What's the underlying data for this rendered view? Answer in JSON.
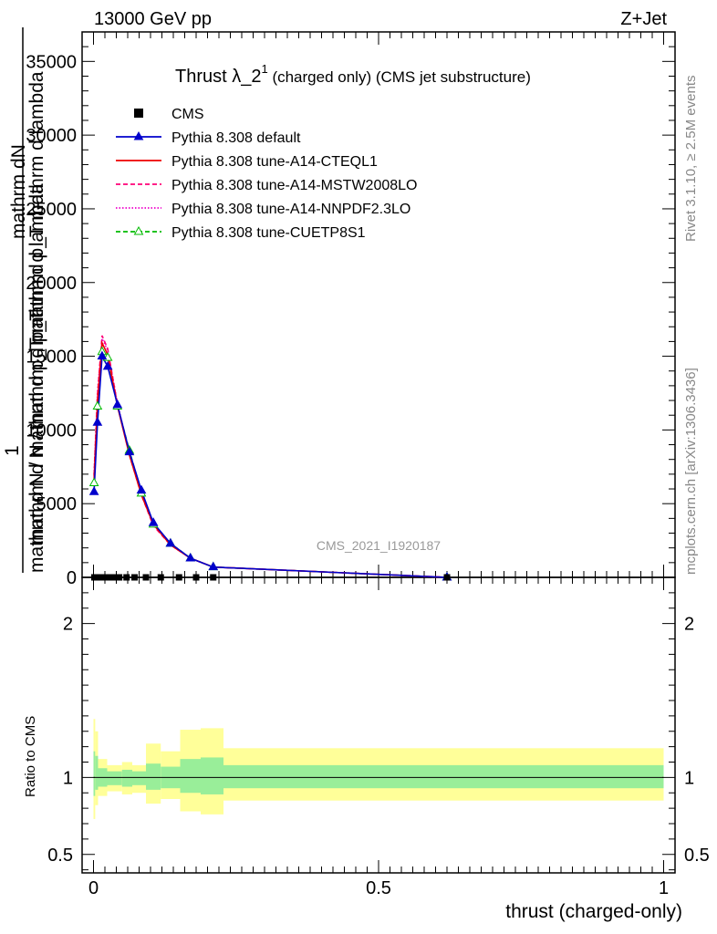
{
  "header": {
    "energy": "13000 GeV pp",
    "process": "Z+Jet"
  },
  "side_labels": {
    "rivet": "Rivet 3.1.10, ≥ 2.5M events",
    "mcplots": "mcplots.cern.ch [arXiv:1306.3436]"
  },
  "watermark": "CMS_2021_I1920187",
  "main_ylabel_lines": [
    "mathrm dN",
    "1",
    "mathrm d N / mathrm d p_T",
    "mathrm d p_T mathrm d lambda",
    "mathrm d N / mathrm d p_T mathrm d lambda"
  ],
  "ratio_ylabel": "Ratio to CMS",
  "xlabel": "thrust (charged-only)",
  "colors": {
    "cms": "#000000",
    "default": "#0000cc",
    "cteql1": "#ee0000",
    "mstw": "#ff0077",
    "nnpdf": "#ee00cc",
    "cuetp8s1": "#00bb00",
    "band_inner": "#99ee99",
    "band_outer": "#ffff99"
  },
  "chart_data": [
    {
      "type": "line",
      "title": "Thrust λ_2¹ (charged only) (CMS jet substructure)",
      "title_main": "Thrust λ_2",
      "title_sup": "1",
      "title_rest": " (charged only) (CMS jet substructure)",
      "xlim": [
        -0.02,
        1.02
      ],
      "ylim": [
        0,
        37000
      ],
      "yticks": [
        0,
        5000,
        10000,
        15000,
        20000,
        25000,
        30000,
        35000
      ],
      "ytick_labels": [
        "0",
        "5000",
        "10000",
        "15000",
        "20000",
        "25000",
        "30000",
        "35000"
      ],
      "xticks": [
        0,
        0.5,
        1
      ],
      "xtick_labels": [
        "0",
        "0.5",
        "1"
      ],
      "legend_position": "top-left",
      "series": [
        {
          "name": "CMS",
          "style": "data",
          "x": [
            0.0015,
            0.0055,
            0.0105,
            0.016,
            0.022,
            0.028,
            0.036,
            0.045,
            0.058,
            0.072,
            0.092,
            0.118,
            0.15,
            0.18,
            0.21,
            0.62
          ],
          "y": [
            0,
            0,
            0,
            0,
            0,
            0,
            0,
            0,
            0,
            0,
            0,
            0,
            0,
            0,
            0,
            0
          ]
        },
        {
          "name": "Pythia 8.308 default",
          "style": "default",
          "x": [
            0.001,
            0.007,
            0.015,
            0.025,
            0.042,
            0.063,
            0.084,
            0.105,
            0.135,
            0.17,
            0.21,
            0.62
          ],
          "y": [
            5800,
            10500,
            15000,
            14300,
            11700,
            8500,
            5900,
            3700,
            2300,
            1300,
            700,
            0
          ]
        },
        {
          "name": "Pythia 8.308 tune-A14-CTEQL1",
          "style": "cteql1",
          "x": [
            0.001,
            0.007,
            0.015,
            0.025,
            0.042,
            0.063,
            0.084,
            0.105,
            0.135,
            0.17,
            0.21,
            0.62
          ],
          "y": [
            6600,
            11900,
            15900,
            15100,
            11600,
            8300,
            5600,
            3600,
            2200,
            1300,
            700,
            0
          ]
        },
        {
          "name": "Pythia 8.308 tune-A14-MSTW2008LO",
          "style": "mstw",
          "x": [
            0.001,
            0.007,
            0.015,
            0.025,
            0.042,
            0.063,
            0.084,
            0.105,
            0.135,
            0.17,
            0.21,
            0.62
          ],
          "y": [
            6900,
            12400,
            16400,
            15500,
            11700,
            8300,
            5600,
            3500,
            2200,
            1300,
            700,
            0
          ]
        },
        {
          "name": "Pythia 8.308 tune-A14-NNPDF2.3LO",
          "style": "nnpdf",
          "x": [
            0.001,
            0.007,
            0.015,
            0.025,
            0.042,
            0.063,
            0.084,
            0.105,
            0.135,
            0.17,
            0.21,
            0.62
          ],
          "y": [
            7000,
            12600,
            16200,
            15400,
            11800,
            8400,
            5700,
            3600,
            2200,
            1300,
            700,
            0
          ]
        },
        {
          "name": "Pythia 8.308 tune-CUETP8S1",
          "style": "cuetp8s1",
          "x": [
            0.001,
            0.007,
            0.015,
            0.025,
            0.042,
            0.063,
            0.084,
            0.105,
            0.135,
            0.17,
            0.21,
            0.62
          ],
          "y": [
            6400,
            11600,
            15300,
            14900,
            11600,
            8600,
            5700,
            3600,
            2300,
            1300,
            700,
            0
          ]
        }
      ]
    },
    {
      "type": "area",
      "ylabel": "Ratio to CMS",
      "xlabel": "thrust (charged-only)",
      "xlim": [
        -0.02,
        1.02
      ],
      "ylim": [
        0.38,
        2.3
      ],
      "yticks": [
        0.5,
        1,
        2
      ],
      "ytick_labels": [
        "0.5",
        "1",
        "2"
      ],
      "xticks": [
        0,
        0.5,
        1
      ],
      "xtick_labels": [
        "0",
        "0.5",
        "1"
      ],
      "reference": 1,
      "bins": [
        {
          "x0": 0.0,
          "x1": 0.003,
          "inner": [
            0.88,
            1.17
          ],
          "outer": [
            0.73,
            1.38
          ]
        },
        {
          "x0": 0.003,
          "x1": 0.008,
          "inner": [
            0.92,
            1.14
          ],
          "outer": [
            0.82,
            1.3
          ]
        },
        {
          "x0": 0.008,
          "x1": 0.024,
          "inner": [
            0.94,
            1.06
          ],
          "outer": [
            0.88,
            1.12
          ]
        },
        {
          "x0": 0.024,
          "x1": 0.05,
          "inner": [
            0.95,
            1.04
          ],
          "outer": [
            0.91,
            1.08
          ]
        },
        {
          "x0": 0.05,
          "x1": 0.068,
          "inner": [
            0.94,
            1.05
          ],
          "outer": [
            0.89,
            1.1
          ]
        },
        {
          "x0": 0.068,
          "x1": 0.092,
          "inner": [
            0.95,
            1.04
          ],
          "outer": [
            0.9,
            1.08
          ]
        },
        {
          "x0": 0.092,
          "x1": 0.118,
          "inner": [
            0.92,
            1.09
          ],
          "outer": [
            0.83,
            1.22
          ]
        },
        {
          "x0": 0.118,
          "x1": 0.152,
          "inner": [
            0.93,
            1.07
          ],
          "outer": [
            0.86,
            1.17
          ]
        },
        {
          "x0": 0.152,
          "x1": 0.188,
          "inner": [
            0.9,
            1.12
          ],
          "outer": [
            0.78,
            1.31
          ]
        },
        {
          "x0": 0.188,
          "x1": 0.228,
          "inner": [
            0.89,
            1.13
          ],
          "outer": [
            0.76,
            1.32
          ]
        },
        {
          "x0": 0.228,
          "x1": 1.0,
          "inner": [
            0.93,
            1.08
          ],
          "outer": [
            0.85,
            1.19
          ]
        }
      ]
    }
  ]
}
